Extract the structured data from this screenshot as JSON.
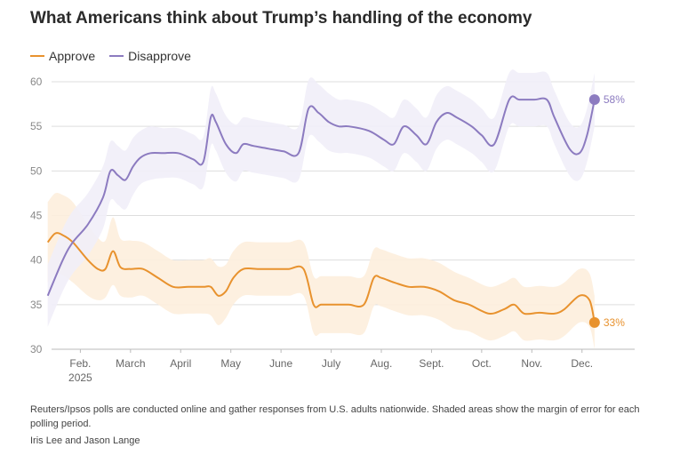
{
  "title": "What Americans think about Trump’s handling of the economy",
  "legend": [
    {
      "label": "Approve",
      "color": "#e8922e"
    },
    {
      "label": "Disapprove",
      "color": "#8c7bc0"
    }
  ],
  "footnote": "Reuters/Ipsos polls are conducted online and gather responses from U.S. adults nationwide. Shaded areas show the margin of error for each polling period.",
  "byline": "Iris Lee and Jason Lange",
  "chart_data": {
    "type": "line",
    "title": "What Americans think about Trump’s handling of the economy",
    "xlabel": "",
    "ylabel": "",
    "xlim": [
      0,
      11.5
    ],
    "ylim": [
      30,
      60
    ],
    "grid": true,
    "yticks": [
      30,
      35,
      40,
      45,
      50,
      55,
      60
    ],
    "xticks": [
      {
        "pos": 0.45,
        "label": "Feb.",
        "sublabel": "2025"
      },
      {
        "pos": 1.45,
        "label": "March"
      },
      {
        "pos": 2.45,
        "label": "April"
      },
      {
        "pos": 3.45,
        "label": "May"
      },
      {
        "pos": 4.45,
        "label": "June"
      },
      {
        "pos": 5.45,
        "label": "July"
      },
      {
        "pos": 6.45,
        "label": "Aug."
      },
      {
        "pos": 7.45,
        "label": "Sept."
      },
      {
        "pos": 8.45,
        "label": "Oct."
      },
      {
        "pos": 9.45,
        "label": "Nov."
      },
      {
        "pos": 10.45,
        "label": "Dec."
      }
    ],
    "series": [
      {
        "name": "Approve",
        "color": "#e8922e",
        "band_color": "#fdeedd",
        "end_label": "33%",
        "x": [
          -0.2,
          -0.05,
          0.1,
          0.3,
          0.6,
          0.8,
          0.95,
          1.1,
          1.25,
          1.45,
          1.7,
          2.0,
          2.3,
          2.6,
          2.9,
          3.05,
          3.2,
          3.35,
          3.5,
          3.7,
          4.0,
          4.3,
          4.6,
          4.9,
          5.1,
          5.25,
          5.5,
          5.8,
          6.1,
          6.3,
          6.45,
          6.7,
          7.0,
          7.3,
          7.6,
          7.9,
          8.2,
          8.6,
          8.9,
          9.1,
          9.3,
          9.6,
          9.9,
          10.1,
          10.4,
          10.6,
          10.7
        ],
        "y": [
          42,
          43,
          42.8,
          42,
          40,
          39,
          39,
          41,
          39.2,
          39,
          39,
          38,
          37,
          37,
          37,
          37,
          36,
          36.5,
          38,
          39,
          39,
          39,
          39,
          39,
          35,
          35,
          35,
          35,
          35,
          38,
          38,
          37.5,
          37,
          37,
          36.5,
          35.5,
          35,
          34,
          34.5,
          35,
          34,
          34.1,
          34,
          34.5,
          36,
          35.5,
          33
        ],
        "band": [
          4.5,
          4.5,
          4.5,
          4.5,
          4.0,
          3.5,
          3.2,
          3.8,
          3.2,
          3.2,
          3.0,
          3.0,
          3.0,
          3.0,
          3.0,
          3.2,
          3.3,
          3.0,
          3.0,
          3.0,
          3.0,
          3.0,
          3.0,
          3.0,
          3.2,
          3.2,
          3.2,
          3.2,
          3.2,
          3.2,
          3.2,
          3.2,
          3.2,
          3.2,
          3.2,
          3.2,
          3.0,
          3.0,
          3.0,
          3.0,
          3.0,
          3.0,
          3.0,
          3.0,
          3.0,
          3.0,
          3.0
        ]
      },
      {
        "name": "Disapprove",
        "color": "#8c7bc0",
        "band_color": "#f1eef8",
        "end_label": "58%",
        "x": [
          -0.2,
          0.1,
          0.3,
          0.6,
          0.9,
          1.05,
          1.2,
          1.35,
          1.5,
          1.65,
          1.85,
          2.1,
          2.4,
          2.7,
          2.9,
          3.05,
          3.15,
          3.35,
          3.55,
          3.7,
          3.9,
          4.2,
          4.5,
          4.8,
          5.0,
          5.2,
          5.4,
          5.6,
          5.8,
          6.2,
          6.5,
          6.7,
          6.9,
          7.15,
          7.35,
          7.55,
          7.75,
          7.95,
          8.25,
          8.45,
          8.7,
          9.0,
          9.2,
          9.5,
          9.75,
          9.9,
          10.2,
          10.4,
          10.55,
          10.7
        ],
        "y": [
          36,
          40,
          42,
          44,
          47,
          50,
          49.5,
          49,
          50.5,
          51.5,
          52,
          52,
          52,
          51.3,
          51,
          56,
          55.5,
          53,
          52,
          53,
          52.8,
          52.5,
          52.2,
          52,
          57,
          56.5,
          55.5,
          55,
          55,
          54.5,
          53.5,
          53,
          55,
          54,
          53,
          55.5,
          56.5,
          56,
          55,
          54,
          53,
          58,
          58,
          58,
          58,
          56,
          52.5,
          52,
          54,
          58
        ],
        "band": [
          3.5,
          3.5,
          3.5,
          3.5,
          3.5,
          3.3,
          3.3,
          3.3,
          3.2,
          3.0,
          3.0,
          2.8,
          2.8,
          2.8,
          2.8,
          3.2,
          3.2,
          3.2,
          3.2,
          3.0,
          3.0,
          3.0,
          3.0,
          3.0,
          3.2,
          3.2,
          3.2,
          3.0,
          3.0,
          3.0,
          3.0,
          3.0,
          3.0,
          3.0,
          3.0,
          3.0,
          3.0,
          3.0,
          3.0,
          3.0,
          3.0,
          3.0,
          3.0,
          3.0,
          3.0,
          3.0,
          3.0,
          3.0,
          3.0,
          3.0
        ]
      }
    ]
  }
}
